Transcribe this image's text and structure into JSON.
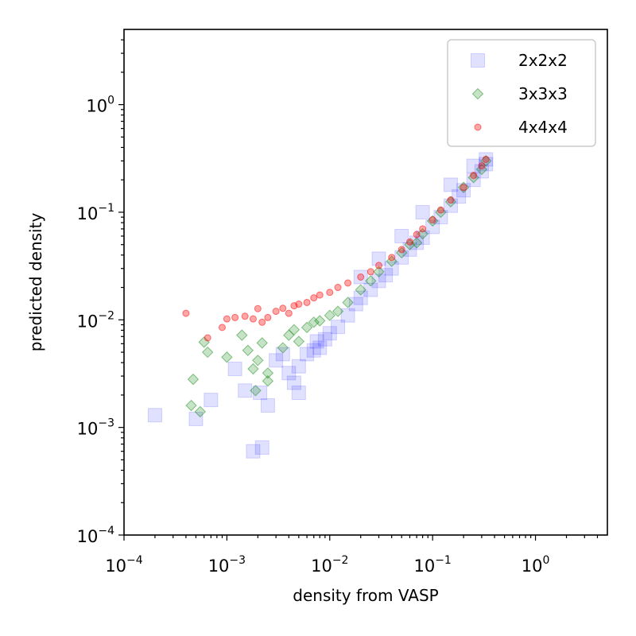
{
  "chart_data": {
    "type": "scatter",
    "title": "",
    "xlabel": "density from VASP",
    "ylabel": "predicted density",
    "xscale": "log",
    "yscale": "log",
    "xlim": [
      0.0001,
      5
    ],
    "ylim": [
      0.0001,
      5
    ],
    "xticks": [
      {
        "base": "10",
        "exp": "−4",
        "value": 0.0001
      },
      {
        "base": "10",
        "exp": "−3",
        "value": 0.001
      },
      {
        "base": "10",
        "exp": "−2",
        "value": 0.01
      },
      {
        "base": "10",
        "exp": "−1",
        "value": 0.1
      },
      {
        "base": "10",
        "exp": "0",
        "value": 1
      }
    ],
    "yticks": [
      {
        "base": "10",
        "exp": "−4",
        "value": 0.0001
      },
      {
        "base": "10",
        "exp": "−3",
        "value": 0.001
      },
      {
        "base": "10",
        "exp": "−2",
        "value": 0.01
      },
      {
        "base": "10",
        "exp": "−1",
        "value": 0.1
      },
      {
        "base": "10",
        "exp": "0",
        "value": 1
      }
    ],
    "legend_position": "top-right",
    "series": [
      {
        "name": "2x2x2",
        "marker": "square",
        "color": "#0000ff",
        "points": [
          [
            0.0002,
            0.0013
          ],
          [
            0.0005,
            0.0012
          ],
          [
            0.0007,
            0.0018
          ],
          [
            0.0012,
            0.0035
          ],
          [
            0.0015,
            0.0022
          ],
          [
            0.0018,
            0.0006
          ],
          [
            0.0021,
            0.0021
          ],
          [
            0.0022,
            0.00065
          ],
          [
            0.0025,
            0.0016
          ],
          [
            0.003,
            0.0042
          ],
          [
            0.0035,
            0.0048
          ],
          [
            0.004,
            0.0032
          ],
          [
            0.0045,
            0.0026
          ],
          [
            0.005,
            0.0021
          ],
          [
            0.005,
            0.0037
          ],
          [
            0.006,
            0.0048
          ],
          [
            0.007,
            0.0052
          ],
          [
            0.0075,
            0.0063
          ],
          [
            0.008,
            0.0055
          ],
          [
            0.009,
            0.0066
          ],
          [
            0.01,
            0.0075
          ],
          [
            0.012,
            0.0086
          ],
          [
            0.015,
            0.011
          ],
          [
            0.018,
            0.014
          ],
          [
            0.02,
            0.016
          ],
          [
            0.025,
            0.019
          ],
          [
            0.03,
            0.023
          ],
          [
            0.035,
            0.026
          ],
          [
            0.04,
            0.03
          ],
          [
            0.05,
            0.038
          ],
          [
            0.06,
            0.045
          ],
          [
            0.07,
            0.052
          ],
          [
            0.08,
            0.058
          ],
          [
            0.1,
            0.073
          ],
          [
            0.12,
            0.09
          ],
          [
            0.15,
            0.115
          ],
          [
            0.18,
            0.14
          ],
          [
            0.2,
            0.16
          ],
          [
            0.25,
            0.2
          ],
          [
            0.3,
            0.24
          ],
          [
            0.33,
            0.28
          ],
          [
            0.33,
            0.31
          ],
          [
            0.25,
            0.27
          ],
          [
            0.15,
            0.18
          ],
          [
            0.08,
            0.1
          ],
          [
            0.05,
            0.06
          ],
          [
            0.03,
            0.037
          ],
          [
            0.02,
            0.025
          ]
        ]
      },
      {
        "name": "3x3x3",
        "marker": "diamond",
        "color": "#008000",
        "points": [
          [
            0.00045,
            0.0016
          ],
          [
            0.00047,
            0.0028
          ],
          [
            0.00055,
            0.0014
          ],
          [
            0.0006,
            0.0062
          ],
          [
            0.00065,
            0.005
          ],
          [
            0.001,
            0.0045
          ],
          [
            0.0014,
            0.0072
          ],
          [
            0.0016,
            0.0052
          ],
          [
            0.0018,
            0.0035
          ],
          [
            0.0019,
            0.0022
          ],
          [
            0.002,
            0.0042
          ],
          [
            0.0022,
            0.0061
          ],
          [
            0.0025,
            0.0032
          ],
          [
            0.0025,
            0.0027
          ],
          [
            0.0035,
            0.0055
          ],
          [
            0.004,
            0.0072
          ],
          [
            0.0045,
            0.0081
          ],
          [
            0.005,
            0.0063
          ],
          [
            0.006,
            0.0085
          ],
          [
            0.007,
            0.0095
          ],
          [
            0.008,
            0.0098
          ],
          [
            0.01,
            0.011
          ],
          [
            0.012,
            0.012
          ],
          [
            0.015,
            0.0145
          ],
          [
            0.02,
            0.019
          ],
          [
            0.025,
            0.023
          ],
          [
            0.03,
            0.028
          ],
          [
            0.04,
            0.035
          ],
          [
            0.05,
            0.042
          ],
          [
            0.06,
            0.05
          ],
          [
            0.07,
            0.052
          ],
          [
            0.08,
            0.063
          ],
          [
            0.1,
            0.083
          ],
          [
            0.12,
            0.1
          ],
          [
            0.15,
            0.125
          ],
          [
            0.2,
            0.17
          ],
          [
            0.25,
            0.21
          ],
          [
            0.3,
            0.25
          ],
          [
            0.33,
            0.3
          ]
        ]
      },
      {
        "name": "4x4x4",
        "marker": "circle",
        "color": "#ff0000",
        "points": [
          [
            0.0004,
            0.0115
          ],
          [
            0.00065,
            0.0068
          ],
          [
            0.0009,
            0.0085
          ],
          [
            0.001,
            0.0102
          ],
          [
            0.0012,
            0.0105
          ],
          [
            0.0015,
            0.0108
          ],
          [
            0.0018,
            0.0102
          ],
          [
            0.002,
            0.0127
          ],
          [
            0.0022,
            0.0095
          ],
          [
            0.0025,
            0.0105
          ],
          [
            0.003,
            0.012
          ],
          [
            0.0035,
            0.0128
          ],
          [
            0.004,
            0.0115
          ],
          [
            0.0045,
            0.0135
          ],
          [
            0.005,
            0.014
          ],
          [
            0.006,
            0.0145
          ],
          [
            0.007,
            0.016
          ],
          [
            0.008,
            0.017
          ],
          [
            0.01,
            0.018
          ],
          [
            0.012,
            0.02
          ],
          [
            0.015,
            0.022
          ],
          [
            0.02,
            0.025
          ],
          [
            0.025,
            0.028
          ],
          [
            0.03,
            0.032
          ],
          [
            0.04,
            0.038
          ],
          [
            0.05,
            0.045
          ],
          [
            0.06,
            0.053
          ],
          [
            0.07,
            0.062
          ],
          [
            0.08,
            0.07
          ],
          [
            0.1,
            0.085
          ],
          [
            0.12,
            0.105
          ],
          [
            0.15,
            0.13
          ],
          [
            0.2,
            0.17
          ],
          [
            0.25,
            0.22
          ],
          [
            0.3,
            0.27
          ],
          [
            0.33,
            0.31
          ]
        ]
      }
    ]
  }
}
